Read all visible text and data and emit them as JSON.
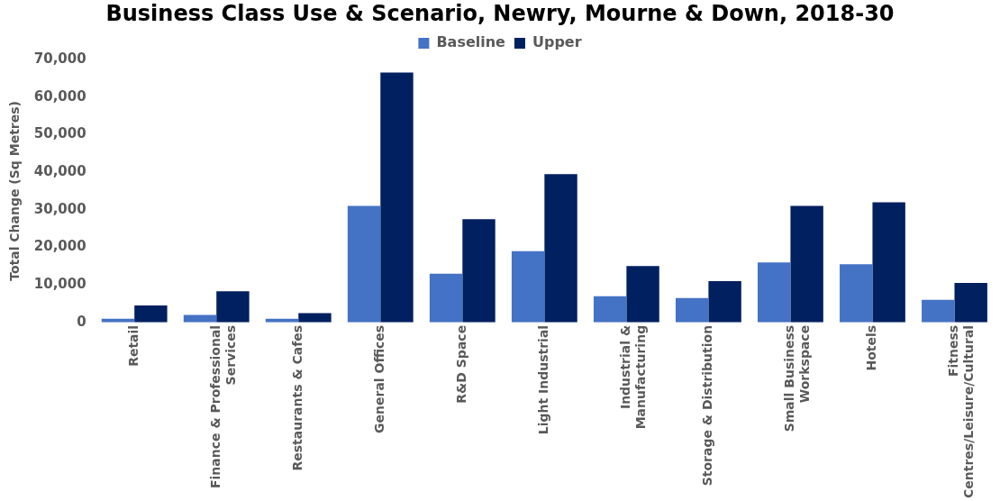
{
  "chart_data": {
    "type": "bar",
    "title": "Business Class Use & Scenario, Newry, Mourne & Down, 2018-30",
    "ylabel": "Total Change (Sq Metres)",
    "categories": [
      "Retail",
      "Finance & Professional Services",
      "Restaurants & Cafes",
      "General Offices",
      "R&D Space",
      "Light Industrial",
      "Industrial & Manufacturing",
      "Storage & Distribution",
      "Small Business Workspace",
      "Hotels",
      "Fitness Centres/Leisure/Cultural"
    ],
    "series": [
      {
        "name": "Baseline",
        "color": "#4472c4",
        "values": [
          1000,
          2000,
          1000,
          31000,
          13000,
          19000,
          7000,
          6500,
          16000,
          15500,
          6000
        ]
      },
      {
        "name": "Upper",
        "color": "#002060",
        "values": [
          4500,
          8300,
          2500,
          66500,
          27500,
          39500,
          15000,
          11000,
          31000,
          32000,
          10500
        ]
      }
    ],
    "ylim": [
      0,
      70000
    ],
    "yticks": [
      0,
      {
        "value": 10000,
        "label": "10,000"
      },
      {
        "value": 20000,
        "label": "20,000"
      },
      {
        "value": 30000,
        "label": "30,000"
      },
      {
        "value": 40000,
        "label": "40,000"
      },
      {
        "value": 50000,
        "label": "50,000"
      },
      {
        "value": 60000,
        "label": "60,000"
      },
      {
        "value": 70000,
        "label": "70,000"
      }
    ],
    "grid": false,
    "legend": "top"
  }
}
